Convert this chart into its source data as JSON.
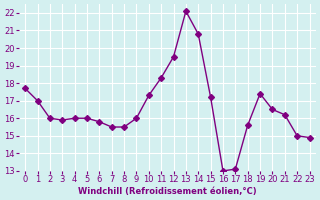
{
  "x": [
    0,
    1,
    2,
    3,
    4,
    5,
    6,
    7,
    8,
    9,
    10,
    11,
    12,
    13,
    14,
    15,
    16,
    17,
    18,
    19,
    20,
    21,
    22,
    23
  ],
  "y": [
    17.7,
    17.0,
    16.0,
    15.9,
    16.0,
    16.0,
    15.8,
    15.5,
    15.5,
    16.0,
    17.3,
    18.3,
    19.5,
    22.1,
    20.8,
    17.2,
    13.0,
    13.1,
    15.6,
    17.4,
    16.5,
    16.2,
    15.0,
    14.9
  ],
  "line_color": "#800080",
  "marker": "D",
  "marker_size": 3,
  "bg_color": "#d4f0f0",
  "grid_color": "#ffffff",
  "xlabel": "Windchill (Refroidissement éolien,°C)",
  "xlabel_color": "#800080",
  "tick_color": "#800080",
  "ylim": [
    13,
    22.5
  ],
  "yticks": [
    13,
    14,
    15,
    16,
    17,
    18,
    19,
    20,
    21,
    22
  ],
  "xlim": [
    -0.5,
    23.5
  ],
  "xticks": [
    0,
    1,
    2,
    3,
    4,
    5,
    6,
    7,
    8,
    9,
    10,
    11,
    12,
    13,
    14,
    15,
    16,
    17,
    18,
    19,
    20,
    21,
    22,
    23
  ]
}
